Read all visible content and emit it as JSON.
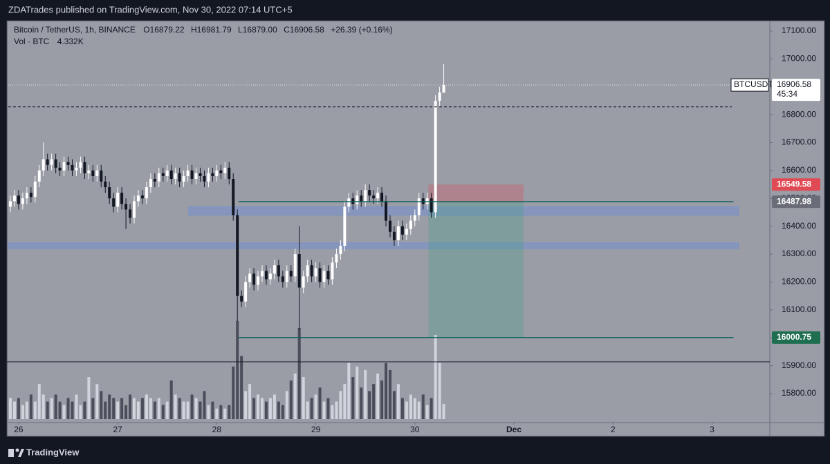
{
  "header": {
    "publisher": "ZDATrades published on TradingView.com, Nov 30, 2022 07:14 UTC+5",
    "brand": "TradingView"
  },
  "chart_data": {
    "type": "candlestick",
    "symbol": "Bitcoin / TetherUS, 1h, BINANCE",
    "legend": [
      [
        "O",
        "16879.22"
      ],
      [
        "H",
        "16981.79"
      ],
      [
        "L",
        "16879.00"
      ],
      [
        "C",
        "16906.58"
      ]
    ],
    "change": "+26.39 (+0.16%)",
    "volume_title": "Vol · BTC",
    "volume_last": "4.332K",
    "open": [
      16470,
      16490,
      16510,
      16480,
      16500,
      16520,
      16505,
      16560,
      16600,
      16640,
      16620,
      16640,
      16610,
      16600,
      16630,
      16620,
      16600,
      16610,
      16630,
      16590,
      16600,
      16580,
      16600,
      16560,
      16540,
      16500,
      16470,
      16520,
      16480,
      16460,
      16430,
      16490,
      16510,
      16500,
      16540,
      16570,
      16560,
      16590,
      16580,
      16600,
      16570,
      16590,
      16560,
      16580,
      16600,
      16570,
      16590,
      16580,
      16560,
      16590,
      16580,
      16600,
      16590,
      16610,
      16570,
      16440,
      16150,
      16130,
      16200,
      16230,
      16190,
      16220,
      16240,
      16210,
      16230,
      16260,
      16220,
      16200,
      16240,
      16220,
      16300,
      16180,
      16220,
      16260,
      16220,
      16250,
      16200,
      16240,
      16210,
      16270,
      16300,
      16330,
      16470,
      16500,
      16480,
      16510,
      16490,
      16530,
      16510,
      16500,
      16520,
      16490,
      16420,
      16380,
      16350,
      16400,
      16370,
      16390,
      16420,
      16440,
      16500,
      16480,
      16500,
      16450,
      16850,
      16879.22
    ],
    "high": [
      16510,
      16530,
      16530,
      16520,
      16540,
      16540,
      16580,
      16620,
      16700,
      16660,
      16660,
      16660,
      16630,
      16650,
      16650,
      16640,
      16630,
      16650,
      16650,
      16620,
      16620,
      16620,
      16620,
      16580,
      16560,
      16520,
      16540,
      16540,
      16500,
      16480,
      16510,
      16530,
      16530,
      16560,
      16590,
      16590,
      16610,
      16610,
      16620,
      16620,
      16610,
      16610,
      16600,
      16620,
      16620,
      16610,
      16610,
      16600,
      16610,
      16610,
      16620,
      16620,
      16630,
      16630,
      16590,
      16460,
      16170,
      16220,
      16250,
      16250,
      16240,
      16260,
      16260,
      16250,
      16280,
      16280,
      16240,
      16260,
      16260,
      16320,
      16400,
      16240,
      16280,
      16280,
      16270,
      16270,
      16260,
      16260,
      16290,
      16320,
      16350,
      16490,
      16520,
      16520,
      16530,
      16530,
      16550,
      16550,
      16530,
      16540,
      16540,
      16510,
      16440,
      16400,
      16420,
      16420,
      16410,
      16440,
      16460,
      16520,
      16520,
      16520,
      16520,
      16870,
      16900,
      16981.79
    ],
    "low": [
      16450,
      16470,
      16460,
      16460,
      16480,
      16485,
      16485,
      16540,
      16580,
      16600,
      16600,
      16590,
      16580,
      16580,
      16600,
      16580,
      16580,
      16590,
      16570,
      16570,
      16560,
      16560,
      16540,
      16520,
      16480,
      16450,
      16450,
      16460,
      16390,
      16410,
      16410,
      16470,
      16480,
      16480,
      16520,
      16540,
      16540,
      16560,
      16560,
      16550,
      16550,
      16540,
      16540,
      16560,
      16550,
      16550,
      16560,
      16540,
      16540,
      16560,
      16560,
      16570,
      16570,
      16550,
      16420,
      16060,
      16110,
      16110,
      16180,
      16170,
      16170,
      16200,
      16190,
      16190,
      16210,
      16200,
      16180,
      16180,
      16200,
      16200,
      16030,
      16160,
      16200,
      16200,
      16200,
      16180,
      16180,
      16190,
      16190,
      16250,
      16280,
      16310,
      16450,
      16460,
      16460,
      16470,
      16470,
      16490,
      16480,
      16480,
      16470,
      16400,
      16360,
      16330,
      16330,
      16350,
      16350,
      16370,
      16400,
      16420,
      16460,
      16460,
      16430,
      16430,
      16830,
      16879.0
    ],
    "close": [
      16490,
      16510,
      16480,
      16500,
      16520,
      16505,
      16560,
      16600,
      16640,
      16620,
      16640,
      16610,
      16600,
      16630,
      16620,
      16600,
      16610,
      16630,
      16590,
      16600,
      16580,
      16600,
      16560,
      16540,
      16500,
      16470,
      16520,
      16480,
      16460,
      16430,
      16490,
      16510,
      16500,
      16540,
      16570,
      16560,
      16590,
      16580,
      16600,
      16570,
      16590,
      16560,
      16580,
      16600,
      16570,
      16590,
      16580,
      16560,
      16590,
      16580,
      16600,
      16590,
      16610,
      16570,
      16440,
      16150,
      16130,
      16200,
      16230,
      16190,
      16220,
      16240,
      16210,
      16230,
      16260,
      16220,
      16200,
      16240,
      16220,
      16300,
      16180,
      16220,
      16260,
      16220,
      16250,
      16200,
      16240,
      16210,
      16270,
      16300,
      16330,
      16470,
      16500,
      16480,
      16510,
      16490,
      16530,
      16510,
      16500,
      16520,
      16490,
      16420,
      16380,
      16350,
      16400,
      16370,
      16390,
      16420,
      16440,
      16500,
      16480,
      16500,
      16450,
      16850,
      16880,
      16906.58
    ],
    "volume": [
      6,
      5,
      6,
      4,
      5,
      7,
      5,
      10,
      7,
      5,
      6,
      7,
      5,
      4,
      6,
      5,
      7,
      4,
      5,
      12,
      6,
      10,
      8,
      5,
      7,
      6,
      5,
      6,
      4,
      7,
      6,
      5,
      6,
      7,
      6,
      5,
      6,
      4,
      5,
      11,
      7,
      6,
      5,
      5,
      7,
      6,
      5,
      8,
      4,
      5,
      3,
      4,
      3,
      4,
      15,
      28,
      18,
      8,
      10,
      6,
      7,
      6,
      5,
      6,
      7,
      5,
      4,
      8,
      11,
      13,
      26,
      12,
      5,
      6,
      7,
      9,
      5,
      6,
      4,
      5,
      8,
      10,
      16,
      12,
      15,
      9,
      14,
      8,
      10,
      13,
      11,
      16,
      14,
      8,
      10,
      6,
      5,
      7,
      6,
      5,
      7,
      4,
      6,
      24,
      16,
      4.332
    ],
    "up_color": "#ffffff",
    "down_color": "#131722",
    "vol_up_color": "#d1d4dc",
    "vol_down_color": "#4a4d5a",
    "xlim": [
      -0.5,
      184
    ],
    "xticks": [
      {
        "value": 2,
        "label": "26"
      },
      {
        "value": 26,
        "label": "27"
      },
      {
        "value": 50,
        "label": "28"
      },
      {
        "value": 74,
        "label": "29"
      },
      {
        "value": 98,
        "label": "30"
      },
      {
        "value": 122,
        "label": "Dec"
      },
      {
        "value": 146,
        "label": "2"
      },
      {
        "value": 170,
        "label": "3"
      }
    ],
    "ylim": [
      15696,
      17137
    ],
    "yticks": [
      {
        "value": 15800,
        "label": "15800.00"
      },
      {
        "value": 15900,
        "label": "15900.00"
      },
      {
        "value": 16000,
        "label": "16000.00"
      },
      {
        "value": 16100,
        "label": "16100.00"
      },
      {
        "value": 16200,
        "label": "16200.00"
      },
      {
        "value": 16300,
        "label": "16300.00"
      },
      {
        "value": 16400,
        "label": "16400.00"
      },
      {
        "value": 16500,
        "label": "16500.00"
      },
      {
        "value": 16600,
        "label": "16600.00"
      },
      {
        "value": 16700,
        "label": "16700.00"
      },
      {
        "value": 16800,
        "label": "16800.00"
      },
      {
        "value": 16900,
        "label": "16900.00"
      },
      {
        "value": 17000,
        "label": "17000.00"
      },
      {
        "value": 17100,
        "label": "17100.00"
      }
    ],
    "zones": [
      {
        "low": 16440,
        "high": 16470,
        "from": 43.2,
        "to": 176.4
      },
      {
        "low": 16320,
        "high": 16340,
        "from": -0.5,
        "to": 176.4
      }
    ],
    "zone_color": "#6f8fd6",
    "position": {
      "from": 101.3,
      "to": 124.3,
      "stop": {
        "value": 16549.58,
        "label": "16549.58",
        "color": "#e04a55"
      },
      "entry": {
        "value": 16487.98,
        "label": "16487.98",
        "color": "#6a6d78"
      },
      "target": {
        "value": 16000.75,
        "label": "16000.75",
        "color": "#1e6e50"
      }
    },
    "level_lines": {
      "from": 55.3,
      "to": 175.2,
      "color": "#0b5e57"
    },
    "marked_level": 16828,
    "last_price": {
      "value": 16906.58,
      "label": "16906.58",
      "symbol": "BTCUSDT",
      "countdown": "45:34"
    }
  }
}
